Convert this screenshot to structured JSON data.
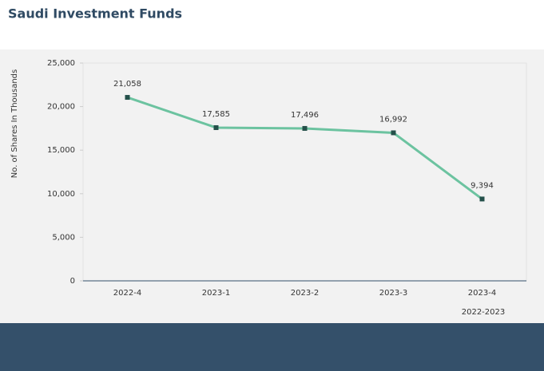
{
  "chart_data": {
    "type": "line",
    "title": "Saudi Investment Funds",
    "y_label": "No. of Shares In Thousands",
    "x_label": "2022-2023",
    "categories": [
      "2022-4",
      "2023-1",
      "2023-2",
      "2023-3",
      "2023-4"
    ],
    "series": [
      {
        "name": "Shares",
        "color": "#6cc3a0",
        "marker_color": "#24504a",
        "values": [
          21058,
          17585,
          17496,
          16992,
          9394
        ],
        "value_labels": [
          "21,058",
          "17,585",
          "17,496",
          "16,992",
          "9,394"
        ]
      }
    ],
    "ylim": [
      0,
      25000
    ],
    "yticks": [
      0,
      {
        "value": 5000,
        "label": "5,000"
      },
      {
        "value": 10000,
        "label": "10,000"
      },
      {
        "value": 15000,
        "label": "15,000"
      },
      {
        "value": 20000,
        "label": "20,000"
      },
      {
        "value": 25000,
        "label": "25,000"
      }
    ]
  }
}
